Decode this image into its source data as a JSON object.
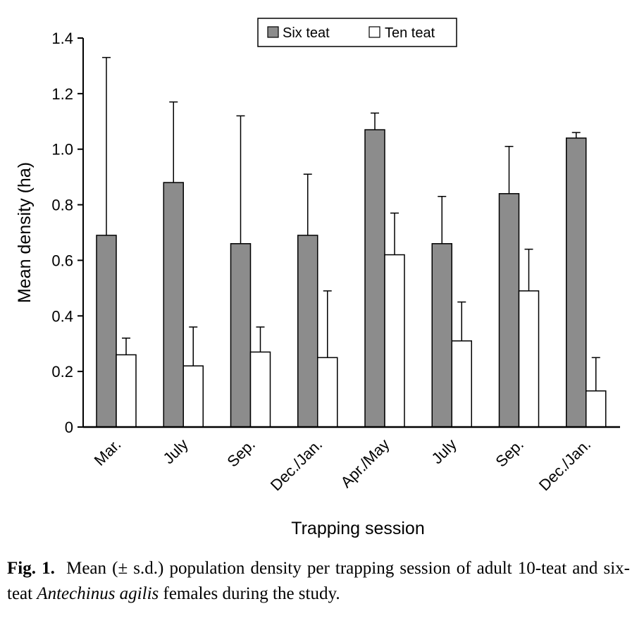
{
  "chart_data": {
    "type": "bar",
    "categories": [
      "Mar.",
      "July",
      "Sep.",
      "Dec./Jan.",
      "Apr./May",
      "July",
      "Sep.",
      "Dec./Jan."
    ],
    "series": [
      {
        "name": "Six teat",
        "values": [
          0.69,
          0.88,
          0.66,
          0.69,
          1.07,
          0.66,
          0.84,
          1.04
        ],
        "errors": [
          0.64,
          0.29,
          0.46,
          0.22,
          0.06,
          0.17,
          0.17,
          0.02
        ],
        "color": "#8c8c8c"
      },
      {
        "name": "Ten teat",
        "values": [
          0.26,
          0.22,
          0.27,
          0.25,
          0.62,
          0.31,
          0.49,
          0.13
        ],
        "errors": [
          0.06,
          0.14,
          0.09,
          0.24,
          0.15,
          0.14,
          0.15,
          0.12
        ],
        "color": "#ffffff"
      }
    ],
    "xlabel": "Trapping session",
    "ylabel": "Mean density (ha)",
    "ylim": [
      0,
      1.4
    ],
    "yticks": [
      0,
      0.2,
      0.4,
      0.6,
      0.8,
      1.0,
      1.2,
      1.4
    ],
    "ytick_labels": [
      "0",
      "0.2",
      "0.4",
      "0.6",
      "0.8",
      "1.0",
      "1.2",
      "1.4"
    ],
    "grid": false,
    "legend_position": "top-center"
  },
  "caption": {
    "label": "Fig. 1.",
    "text_before": "Mean (± s.d.) population density per trapping session of adult 10-teat and six-teat ",
    "species": "Antechinus agilis",
    "text_after": " females during the study."
  }
}
